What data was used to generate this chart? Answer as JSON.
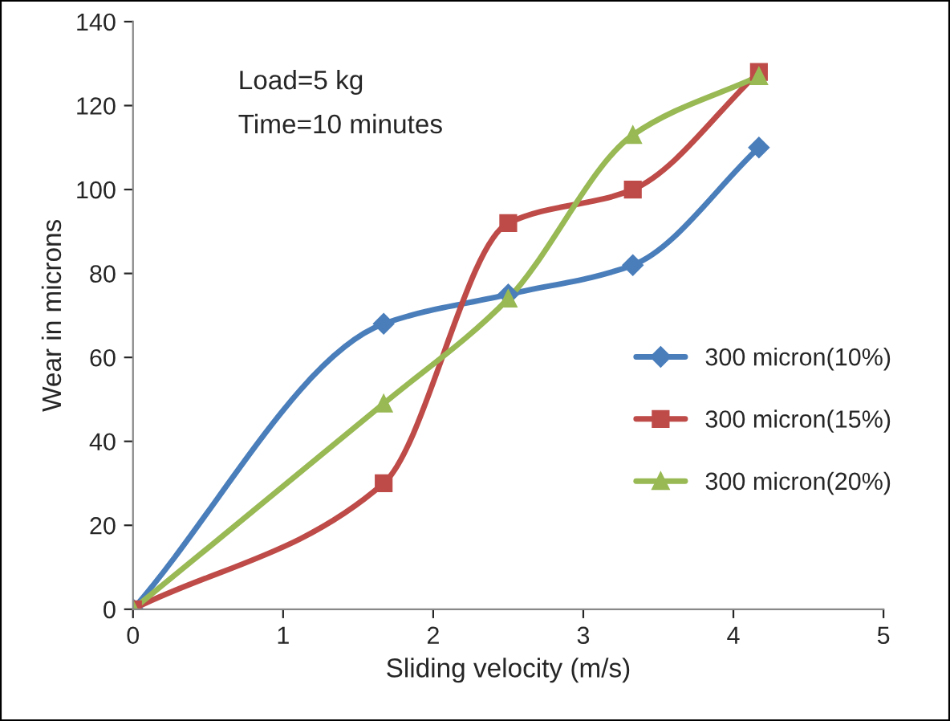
{
  "chart_data": {
    "type": "line",
    "xlabel": "Sliding velocity (m/s)",
    "ylabel": "Wear in microns",
    "x": [
      0,
      1.67,
      2.5,
      3.33,
      4.17
    ],
    "series": [
      {
        "name": "300 micron(10%)",
        "color": "#4a7ebb",
        "marker": "diamond",
        "values": [
          0,
          68,
          75,
          82,
          110
        ]
      },
      {
        "name": "300 micron(15%)",
        "color": "#be4b48",
        "marker": "square",
        "values": [
          0,
          30,
          92,
          100,
          128
        ]
      },
      {
        "name": "300 micron(20%)",
        "color": "#98b954",
        "marker": "triangle",
        "values": [
          0,
          49,
          74,
          113,
          127
        ]
      }
    ],
    "xlim": [
      0,
      5
    ],
    "xticks": [
      0,
      1,
      2,
      3,
      4,
      5
    ],
    "ylim": [
      0,
      140
    ],
    "yticks": [
      0,
      20,
      40,
      60,
      80,
      100,
      120,
      140
    ],
    "annotations": [
      "Load=5 kg",
      "Time=10 minutes"
    ],
    "grid": false,
    "legend": "right",
    "line_style": "solid"
  }
}
